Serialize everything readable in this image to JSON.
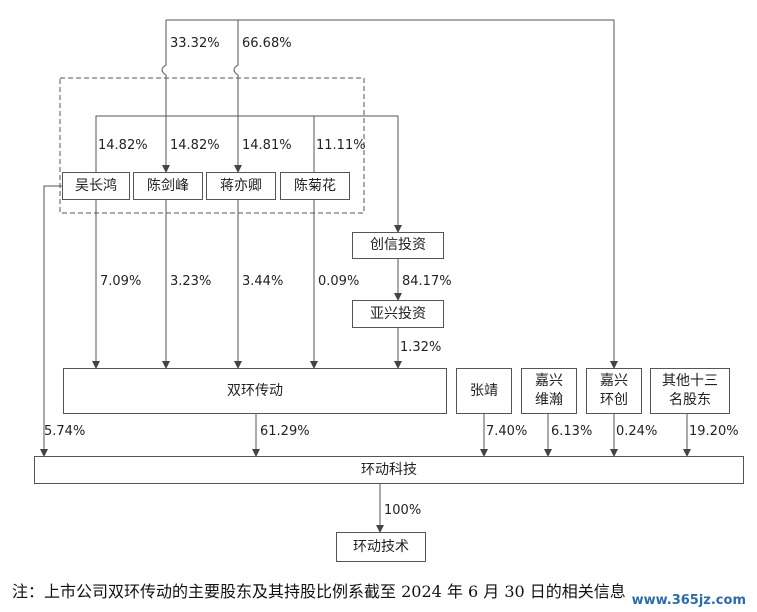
{
  "persons": {
    "wu": "吴长鸿",
    "chen_jianfeng": "陈剑峰",
    "jiang": "蒋亦卿",
    "chen_juhua": "陈菊花"
  },
  "entities": {
    "chuangxin": "创信投资",
    "yaxing": "亚兴投资",
    "shuanghuan": "双环传动",
    "zhangjing": "张靖",
    "jiaxing_weihan": "嘉兴\n维瀚",
    "jiaxing_huanchuang": "嘉兴\n环创",
    "others": "其他十三\n名股东",
    "huandong_keji": "环动科技",
    "huandong_jishu": "环动技术"
  },
  "percentages": {
    "top_left": "33.32%",
    "top_right": "66.68%",
    "wu_chuangxin": "14.82%",
    "chen_jianfeng_chuangxin": "14.82%",
    "jiang_chuangxin": "14.81%",
    "chen_juhua_chuangxin": "11.11%",
    "wu_shuanghuan": "7.09%",
    "chen_jianfeng_shuanghuan": "3.23%",
    "jiang_shuanghuan": "3.44%",
    "chen_juhua_shuanghuan": "0.09%",
    "chuangxin_yaxing": "84.17%",
    "yaxing_shuanghuan": "1.32%",
    "wu_keji": "5.74%",
    "shuanghuan_keji": "61.29%",
    "zhangjing_keji": "7.40%",
    "weihan_keji": "6.13%",
    "huanchuang_keji": "0.24%",
    "others_keji": "19.20%",
    "keji_jishu": "100%"
  },
  "note": "注：上市公司双环传动的主要股东及其持股比例系截至 2024 年 6 月 30 日的相关信息",
  "watermark": "www.365jz.com"
}
